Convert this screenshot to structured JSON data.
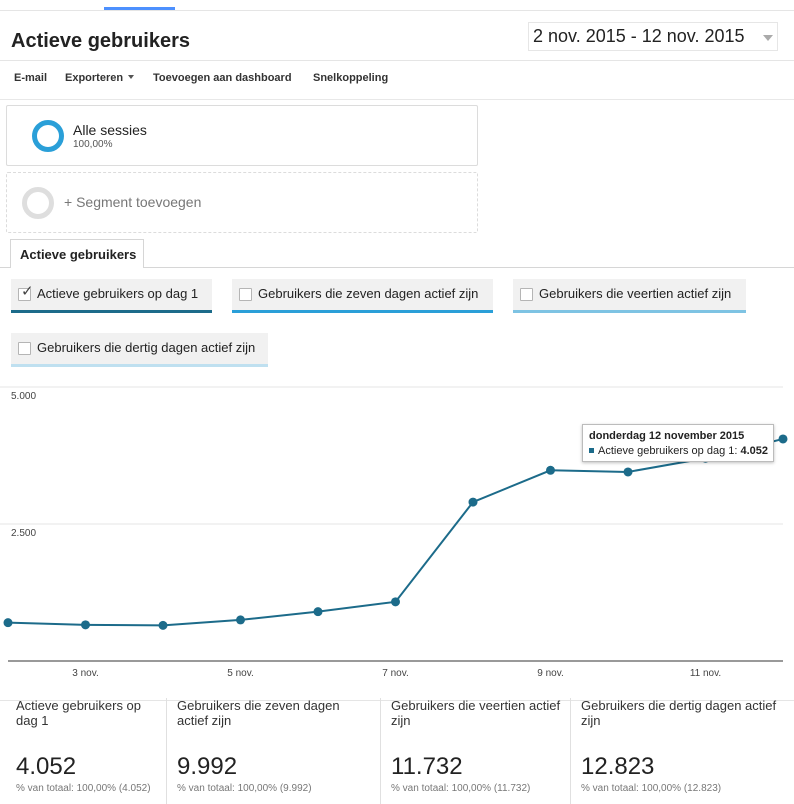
{
  "page": {
    "title": "Actieve gebruikers",
    "date_range": "2 nov. 2015 - 12 nov. 2015"
  },
  "toolbar": {
    "email": "E-mail",
    "export": "Exporteren",
    "add_to_dashboard": "Toevoegen aan dashboard",
    "shortcut": "Snelkoppeling"
  },
  "segments": {
    "active": {
      "name": "Alle sessies",
      "percent": "100,00%",
      "color": "#2a9fd8"
    },
    "add_label": "+ Segment toevoegen"
  },
  "tab": {
    "label": "Actieve gebruikers"
  },
  "metric_chips": [
    {
      "label": "Actieve gebruikers op dag 1",
      "checked": true,
      "color": "#1c6b8a"
    },
    {
      "label": "Gebruikers die zeven dagen actief zijn",
      "checked": false,
      "color": "#2a9fd8"
    },
    {
      "label": "Gebruikers die veertien actief zijn",
      "checked": false,
      "color": "#7ec3e3"
    },
    {
      "label": "Gebruikers die dertig dagen actief zijn",
      "checked": false,
      "color": "#bfe0f0"
    }
  ],
  "chart_data": {
    "type": "line",
    "y_tick_labels": [
      "5.000",
      "2.500"
    ],
    "y_tick_values": [
      5000,
      2500
    ],
    "ylim": [
      0,
      5000
    ],
    "x_tick_labels": [
      "3 nov.",
      "5 nov.",
      "7 nov.",
      "9 nov.",
      "11 nov."
    ],
    "x_tick_days": [
      3,
      5,
      7,
      9,
      11
    ],
    "x_days": [
      2,
      3,
      4,
      5,
      6,
      7,
      8,
      9,
      10,
      11,
      12
    ],
    "series": [
      {
        "values": [
          700,
          660,
          650,
          750,
          900,
          1080,
          2900,
          3480,
          3450,
          3700,
          4052
        ],
        "color": "#1c6b8a"
      }
    ],
    "grid": true
  },
  "tooltip": {
    "title": "donderdag 12 november 2015",
    "series_label": "Actieve gebruikers op dag 1:",
    "value": "4.052"
  },
  "summary": [
    {
      "label": "Actieve gebruikers op dag 1",
      "value": "4.052",
      "total": "% van totaal: 100,00% (4.052)"
    },
    {
      "label": "Gebruikers die zeven dagen actief zijn",
      "value": "9.992",
      "total": "% van totaal: 100,00% (9.992)"
    },
    {
      "label": "Gebruikers die veertien actief zijn",
      "value": "11.732",
      "total": "% van totaal: 100,00% (11.732)"
    },
    {
      "label": "Gebruikers die dertig dagen actief zijn",
      "value": "12.823",
      "total": "% van totaal: 100,00% (12.823)"
    }
  ]
}
